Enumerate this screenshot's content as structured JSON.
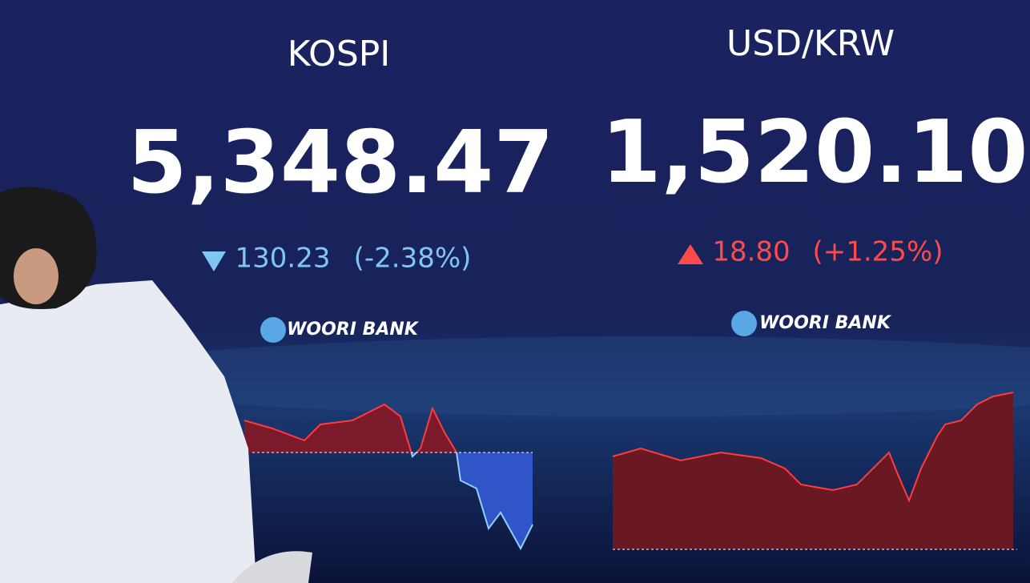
{
  "panels": [
    {
      "title": "KOSPI",
      "value": "5,348.47",
      "change": "130.23",
      "change_percent": "(-2.38%)",
      "brand": "WOORI BANK"
    },
    {
      "title": "USD/KRW",
      "value": "1,520.10",
      "change": "18.80",
      "change_percent": "(+1.25%)",
      "brand": "WOORI BANK"
    }
  ]
}
